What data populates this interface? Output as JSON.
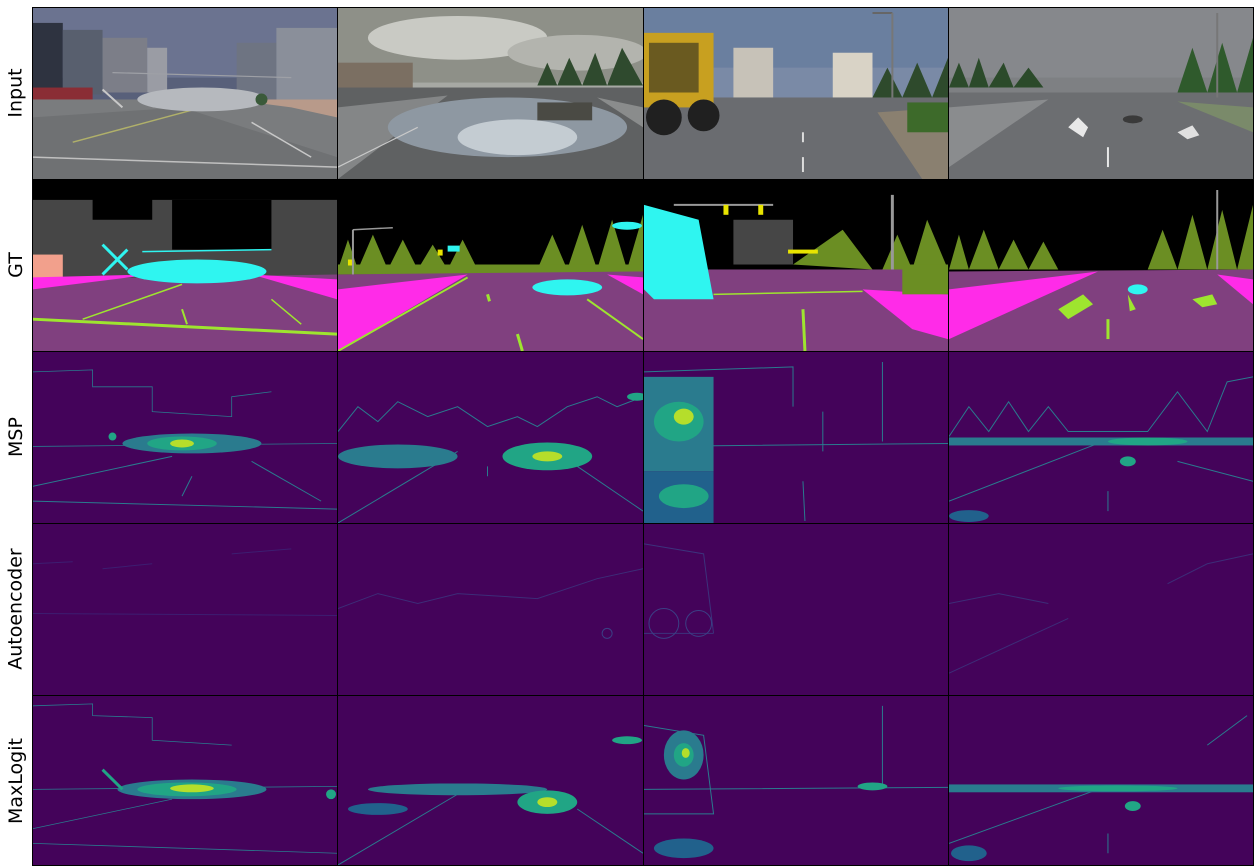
{
  "figure": {
    "rows": [
      {
        "label": "Input"
      },
      {
        "label": "GT"
      },
      {
        "label": "MSP"
      },
      {
        "label": "Autoencoder"
      },
      {
        "label": "MaxLogit"
      }
    ],
    "columns": [
      {
        "scene": "helicopter-street"
      },
      {
        "scene": "flooded-road"
      },
      {
        "scene": "loader-vehicle"
      },
      {
        "scene": "cat-on-road"
      }
    ],
    "colors": {
      "heatmap_bg": "#44035a",
      "heatmap_edge": "#2a7b8e",
      "heatmap_mid": "#21a585",
      "heatmap_hot": "#b5de2b",
      "gt_road": "#80407f",
      "gt_sidewalk": "#ff2be8",
      "gt_marking": "#9ee52f",
      "gt_vegetation": "#6b8e23",
      "gt_building": "#464646",
      "gt_anomaly": "#2ff5f0",
      "gt_sign": "#e8e400",
      "gt_pole": "#999999",
      "gt_sky": "#000000"
    }
  }
}
